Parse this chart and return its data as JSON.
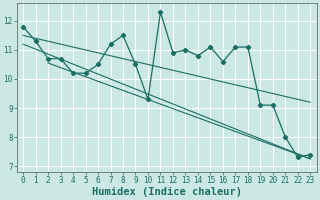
{
  "xlabel": "Humidex (Indice chaleur)",
  "bg_color": "#cce8e4",
  "grid_color": "#ffffff",
  "line_color": "#1a6e64",
  "x_main": [
    0,
    1,
    2,
    3,
    4,
    5,
    6,
    7,
    8,
    9,
    10,
    11,
    12,
    13,
    14,
    15,
    16,
    17,
    18,
    19,
    20,
    21,
    22,
    23
  ],
  "y_main": [
    11.8,
    11.3,
    10.7,
    10.7,
    10.2,
    10.2,
    10.5,
    11.2,
    11.5,
    10.5,
    9.3,
    12.3,
    10.9,
    11.0,
    10.8,
    11.1,
    10.6,
    11.1,
    11.1,
    9.1,
    9.1,
    8.0,
    7.3,
    7.4
  ],
  "trend1_x": [
    0,
    23
  ],
  "trend1_y": [
    11.5,
    9.2
  ],
  "trend2_x": [
    0,
    23
  ],
  "trend2_y": [
    11.2,
    7.25
  ],
  "trend3_x": [
    2,
    23
  ],
  "trend3_y": [
    10.55,
    7.25
  ],
  "ylim": [
    6.8,
    12.6
  ],
  "xlim": [
    -0.5,
    23.5
  ],
  "xticks": [
    0,
    1,
    2,
    3,
    4,
    5,
    6,
    7,
    8,
    9,
    10,
    11,
    12,
    13,
    14,
    15,
    16,
    17,
    18,
    19,
    20,
    21,
    22,
    23
  ],
  "yticks": [
    7,
    8,
    9,
    10,
    11,
    12
  ],
  "tick_fontsize": 5.5,
  "label_fontsize": 7.5
}
